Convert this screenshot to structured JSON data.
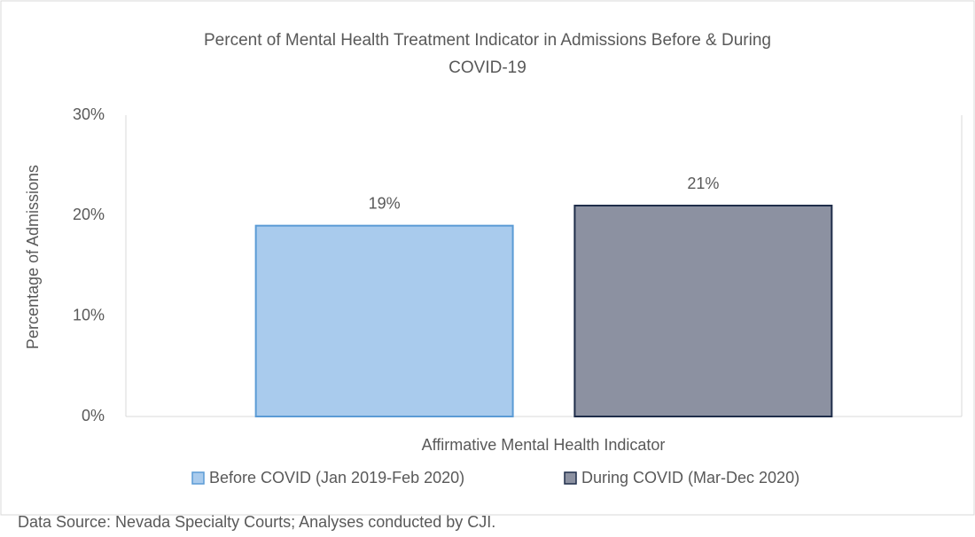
{
  "chart_data": {
    "type": "bar",
    "title": "Percent of Mental Health Treatment Indicator in Admissions Before & During COVID-19",
    "ylabel": "Percentage of Admissions",
    "xlabel": "Affirmative Mental Health Indicator",
    "categories": [
      null
    ],
    "series": [
      {
        "name": "Before COVID (Jan 2019-Feb 2020)",
        "color": "#a9cbed",
        "edge_color": "#5b9bd5",
        "values": [
          19
        ],
        "value_labels": [
          "19%"
        ]
      },
      {
        "name": "During COVID (Mar-Dec 2020)",
        "color": "#8c91a1",
        "edge_color": "#1f2d4a",
        "values": [
          21
        ],
        "value_labels": [
          "21%"
        ]
      }
    ],
    "ylim": [
      0,
      30
    ],
    "yticks": [
      {
        "value": 0,
        "label": "0%"
      },
      {
        "value": 10,
        "label": "10%"
      },
      {
        "value": 20,
        "label": "20%"
      },
      {
        "value": 30,
        "label": "30%"
      }
    ],
    "grid": false,
    "legend": "bottom",
    "source": "Data Source: Nevada Specialty Courts; Analyses conducted by CJI."
  }
}
